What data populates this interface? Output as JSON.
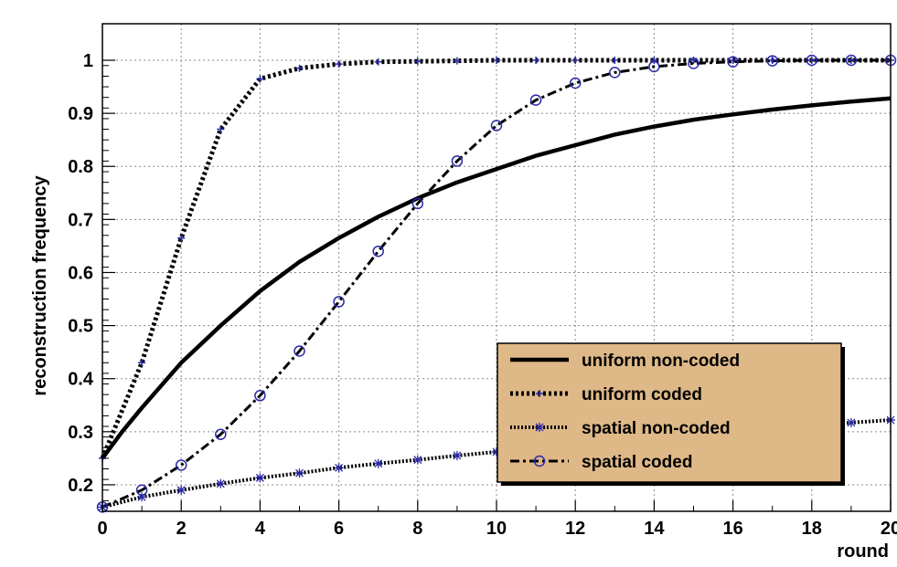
{
  "chart_data": {
    "type": "line",
    "title": "",
    "xlabel": "round",
    "ylabel": "reconstruction frequency",
    "xlim": [
      0,
      20
    ],
    "ylim": [
      0.15,
      1.0
    ],
    "grid": true,
    "legend_position": "bottom-right",
    "x_ticks": [
      0,
      2,
      4,
      6,
      8,
      10,
      12,
      14,
      16,
      18,
      20
    ],
    "x_tick_labels": [
      "0",
      "2",
      "4",
      "6",
      "8",
      "10",
      "12",
      "14",
      "16",
      "18",
      "20"
    ],
    "y_ticks": [
      0.2,
      0.3,
      0.4,
      0.5,
      0.6,
      0.7,
      0.8,
      0.9,
      1.0
    ],
    "y_tick_labels": [
      "0.2",
      "0.3",
      "0.4",
      "0.5",
      "0.6",
      "0.7",
      "0.8",
      "0.9",
      "1"
    ],
    "colors": {
      "line": "#000000",
      "marker": "#2a2aa8",
      "legend_bg": "#deb887",
      "grid": "#8a8a8a",
      "frame_bg": "#f2f2f2"
    },
    "series": [
      {
        "name": "uniform non-coded",
        "style": "solid",
        "marker": "none",
        "x": [
          0,
          0.5,
          1,
          2,
          3,
          4,
          5,
          6,
          7,
          8,
          9,
          10,
          11,
          12,
          13,
          14,
          15,
          16,
          17,
          18,
          19,
          20
        ],
        "y": [
          0.25,
          0.3,
          0.345,
          0.43,
          0.5,
          0.565,
          0.62,
          0.665,
          0.705,
          0.74,
          0.77,
          0.795,
          0.82,
          0.84,
          0.86,
          0.875,
          0.888,
          0.898,
          0.907,
          0.915,
          0.922,
          0.928
        ]
      },
      {
        "name": "uniform coded",
        "style": "dotted",
        "marker": "plus",
        "x": [
          0,
          1,
          2,
          3,
          4,
          5,
          6,
          7,
          8,
          9,
          10,
          11,
          12,
          13,
          14,
          15,
          16,
          17,
          18,
          19,
          20
        ],
        "y": [
          0.25,
          0.43,
          0.665,
          0.87,
          0.965,
          0.985,
          0.993,
          0.997,
          0.998,
          0.999,
          1.0,
          1.0,
          1.0,
          1.0,
          1.0,
          1.0,
          1.0,
          1.0,
          1.0,
          1.0,
          1.0
        ]
      },
      {
        "name": "spatial non-coded",
        "style": "dotted-fine",
        "marker": "star",
        "x": [
          0,
          1,
          2,
          3,
          4,
          5,
          6,
          7,
          8,
          9,
          10,
          11,
          12,
          13,
          14,
          15,
          16,
          17,
          18,
          19,
          20
        ],
        "y": [
          0.158,
          0.177,
          0.19,
          0.202,
          0.213,
          0.222,
          0.232,
          0.24,
          0.247,
          0.255,
          0.262,
          0.269,
          0.276,
          0.283,
          0.29,
          0.296,
          0.302,
          0.307,
          0.312,
          0.317,
          0.322
        ]
      },
      {
        "name": "spatial coded",
        "style": "dashdot",
        "marker": "circle",
        "x": [
          0,
          1,
          2,
          3,
          4,
          5,
          6,
          7,
          8,
          9,
          10,
          11,
          12,
          13,
          14,
          15,
          16,
          17,
          18,
          19,
          20
        ],
        "y": [
          0.158,
          0.19,
          0.237,
          0.295,
          0.368,
          0.452,
          0.545,
          0.64,
          0.73,
          0.81,
          0.877,
          0.925,
          0.957,
          0.977,
          0.988,
          0.994,
          0.997,
          0.999,
          1.0,
          1.0,
          1.0
        ]
      }
    ]
  }
}
